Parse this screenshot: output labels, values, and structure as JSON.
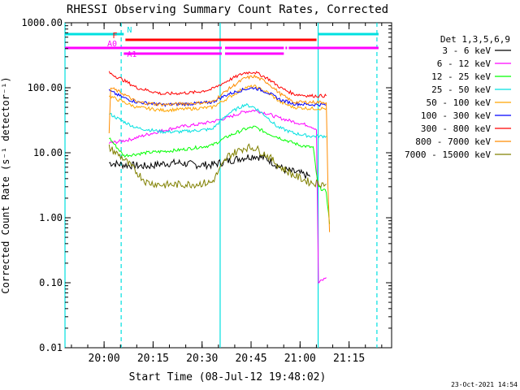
{
  "chart_data": {
    "type": "line",
    "title": "RHESSI Observing Summary Count Rates, Corrected",
    "xlabel": "Start Time (08-Jul-12 19:48:02)",
    "ylabel": "Corrected Count Rate (s⁻¹ detector⁻¹)",
    "yscale": "log",
    "ylim": [
      0.01,
      1000
    ],
    "xlim_minutes": [
      0,
      100
    ],
    "yticks": [
      {
        "label": "0.01",
        "v": 0.01
      },
      {
        "label": "0.10",
        "v": 0.1
      },
      {
        "label": "1.00",
        "v": 1
      },
      {
        "label": "10.00",
        "v": 10
      },
      {
        "label": "100.00",
        "v": 100
      },
      {
        "label": "1000.00",
        "v": 1000
      }
    ],
    "xticks": [
      {
        "label": "20:00",
        "t": 11.97
      },
      {
        "label": "20:15",
        "t": 26.97
      },
      {
        "label": "20:30",
        "t": 41.97
      },
      {
        "label": "20:45",
        "t": 56.97
      },
      {
        "label": "21:00",
        "t": 71.97
      },
      {
        "label": "21:15",
        "t": 86.97
      }
    ],
    "legend_title": "Det 1,3,5,6,9",
    "legend_position": "top-right",
    "timestamp": "23-Oct-2021 14:54",
    "flags": [
      {
        "label": "N",
        "color": "#00e0e0",
        "segments": [
          [
            0,
            18
          ],
          [
            77.5,
            96
          ]
        ]
      },
      {
        "label": "F",
        "color": "#ff0000",
        "segments": [
          [
            18.5,
            77
          ]
        ]
      },
      {
        "label": "A0",
        "color": "#ff00ff",
        "segments": [
          [
            0,
            48
          ],
          [
            49,
            67
          ],
          [
            67.5,
            68
          ],
          [
            68.5,
            96
          ]
        ]
      },
      {
        "label": "A1",
        "color": "#ff00ff",
        "segments": [
          [
            18,
            48
          ],
          [
            49,
            67
          ]
        ]
      }
    ],
    "vlines": [
      {
        "t": 0,
        "color": "#00e0e0",
        "style": "solid"
      },
      {
        "t": 17.2,
        "color": "#00e0e0",
        "style": "dashed"
      },
      {
        "t": 47.5,
        "color": "#00e0e0",
        "style": "solid"
      },
      {
        "t": 77.5,
        "color": "#00e0e0",
        "style": "solid"
      },
      {
        "t": 95.5,
        "color": "#00e0e0",
        "style": "dashed"
      }
    ],
    "series": [
      {
        "name": "3 - 6 keV",
        "color": "#000000",
        "points": [
          [
            13.5,
            7
          ],
          [
            18,
            6.5
          ],
          [
            25,
            6.2
          ],
          [
            30,
            6.8
          ],
          [
            35,
            7
          ],
          [
            40,
            6.5
          ],
          [
            45,
            6.5
          ],
          [
            50,
            7.5
          ],
          [
            55,
            8.5
          ],
          [
            58,
            9
          ],
          [
            62,
            8
          ],
          [
            67,
            5.5
          ],
          [
            72,
            4.8
          ],
          [
            75,
            4.3
          ]
        ]
      },
      {
        "name": "6 - 12 keV",
        "color": "#ff00ff",
        "points": [
          [
            13.5,
            14
          ],
          [
            20,
            16
          ],
          [
            25,
            19
          ],
          [
            30,
            22
          ],
          [
            35,
            25
          ],
          [
            40,
            27
          ],
          [
            45,
            30
          ],
          [
            50,
            35
          ],
          [
            55,
            43
          ],
          [
            58,
            45
          ],
          [
            62,
            40
          ],
          [
            65,
            35
          ],
          [
            70,
            30
          ],
          [
            75,
            26
          ],
          [
            77,
            23
          ],
          [
            77.6,
            0.1
          ],
          [
            80,
            0.12
          ]
        ]
      },
      {
        "name": "12 - 25 keV",
        "color": "#00ff00",
        "points": [
          [
            13.5,
            17
          ],
          [
            18,
            9
          ],
          [
            25,
            10
          ],
          [
            30,
            10.5
          ],
          [
            35,
            11
          ],
          [
            40,
            12
          ],
          [
            45,
            13
          ],
          [
            50,
            18
          ],
          [
            55,
            23
          ],
          [
            58,
            25
          ],
          [
            62,
            20
          ],
          [
            67,
            16
          ],
          [
            72,
            13
          ],
          [
            76,
            12
          ],
          [
            77.5,
            3
          ],
          [
            80,
            2.5
          ],
          [
            81,
            0.8
          ]
        ]
      },
      {
        "name": "25 - 50 keV",
        "color": "#00e0e0",
        "points": [
          [
            13.5,
            40
          ],
          [
            18,
            30
          ],
          [
            22,
            24
          ],
          [
            30,
            21
          ],
          [
            35,
            21
          ],
          [
            40,
            22
          ],
          [
            45,
            23
          ],
          [
            50,
            40
          ],
          [
            55,
            55
          ],
          [
            58,
            50
          ],
          [
            62,
            35
          ],
          [
            65,
            25
          ],
          [
            70,
            20
          ],
          [
            75,
            18
          ],
          [
            80,
            18
          ]
        ]
      },
      {
        "name": "50 - 100 keV",
        "color": "#ffa500",
        "points": [
          [
            13.5,
            75
          ],
          [
            18,
            60
          ],
          [
            22,
            50
          ],
          [
            30,
            45
          ],
          [
            40,
            48
          ],
          [
            45,
            50
          ],
          [
            50,
            70
          ],
          [
            55,
            100
          ],
          [
            58,
            105
          ],
          [
            62,
            85
          ],
          [
            66,
            60
          ],
          [
            70,
            50
          ],
          [
            75,
            48
          ],
          [
            80,
            48
          ]
        ]
      },
      {
        "name": "100 - 300 keV",
        "color": "#0000ff",
        "points": [
          [
            13.5,
            90
          ],
          [
            18,
            70
          ],
          [
            22,
            60
          ],
          [
            30,
            55
          ],
          [
            40,
            57
          ],
          [
            45,
            60
          ],
          [
            50,
            80
          ],
          [
            55,
            95
          ],
          [
            58,
            100
          ],
          [
            62,
            85
          ],
          [
            66,
            65
          ],
          [
            70,
            57
          ],
          [
            75,
            55
          ],
          [
            80,
            55
          ]
        ]
      },
      {
        "name": "300 - 800 keV",
        "color": "#ff0000",
        "points": [
          [
            13.5,
            170
          ],
          [
            18,
            130
          ],
          [
            22,
            100
          ],
          [
            30,
            80
          ],
          [
            40,
            85
          ],
          [
            45,
            95
          ],
          [
            50,
            130
          ],
          [
            55,
            170
          ],
          [
            58,
            175
          ],
          [
            62,
            140
          ],
          [
            66,
            100
          ],
          [
            70,
            80
          ],
          [
            75,
            75
          ],
          [
            80,
            75
          ]
        ]
      },
      {
        "name": "800 - 7000 keV",
        "color": "#ff8c00",
        "points": [
          [
            13.5,
            20
          ],
          [
            14,
            100
          ],
          [
            18,
            80
          ],
          [
            22,
            60
          ],
          [
            30,
            55
          ],
          [
            40,
            58
          ],
          [
            45,
            60
          ],
          [
            50,
            95
          ],
          [
            55,
            140
          ],
          [
            58,
            150
          ],
          [
            62,
            120
          ],
          [
            66,
            80
          ],
          [
            70,
            60
          ],
          [
            75,
            60
          ],
          [
            80,
            60
          ],
          [
            80.5,
            3
          ],
          [
            81,
            0.6
          ]
        ]
      },
      {
        "name": "7000 - 15000 keV",
        "color": "#808000",
        "points": [
          [
            13.5,
            12
          ],
          [
            18,
            8
          ],
          [
            22,
            5
          ],
          [
            25,
            3.5
          ],
          [
            30,
            3.2
          ],
          [
            40,
            3.3
          ],
          [
            45,
            3.5
          ],
          [
            50,
            9
          ],
          [
            55,
            12
          ],
          [
            58,
            12
          ],
          [
            62,
            9
          ],
          [
            66,
            6
          ],
          [
            70,
            4.5
          ],
          [
            75,
            3.5
          ],
          [
            80,
            3.3
          ]
        ]
      }
    ]
  }
}
